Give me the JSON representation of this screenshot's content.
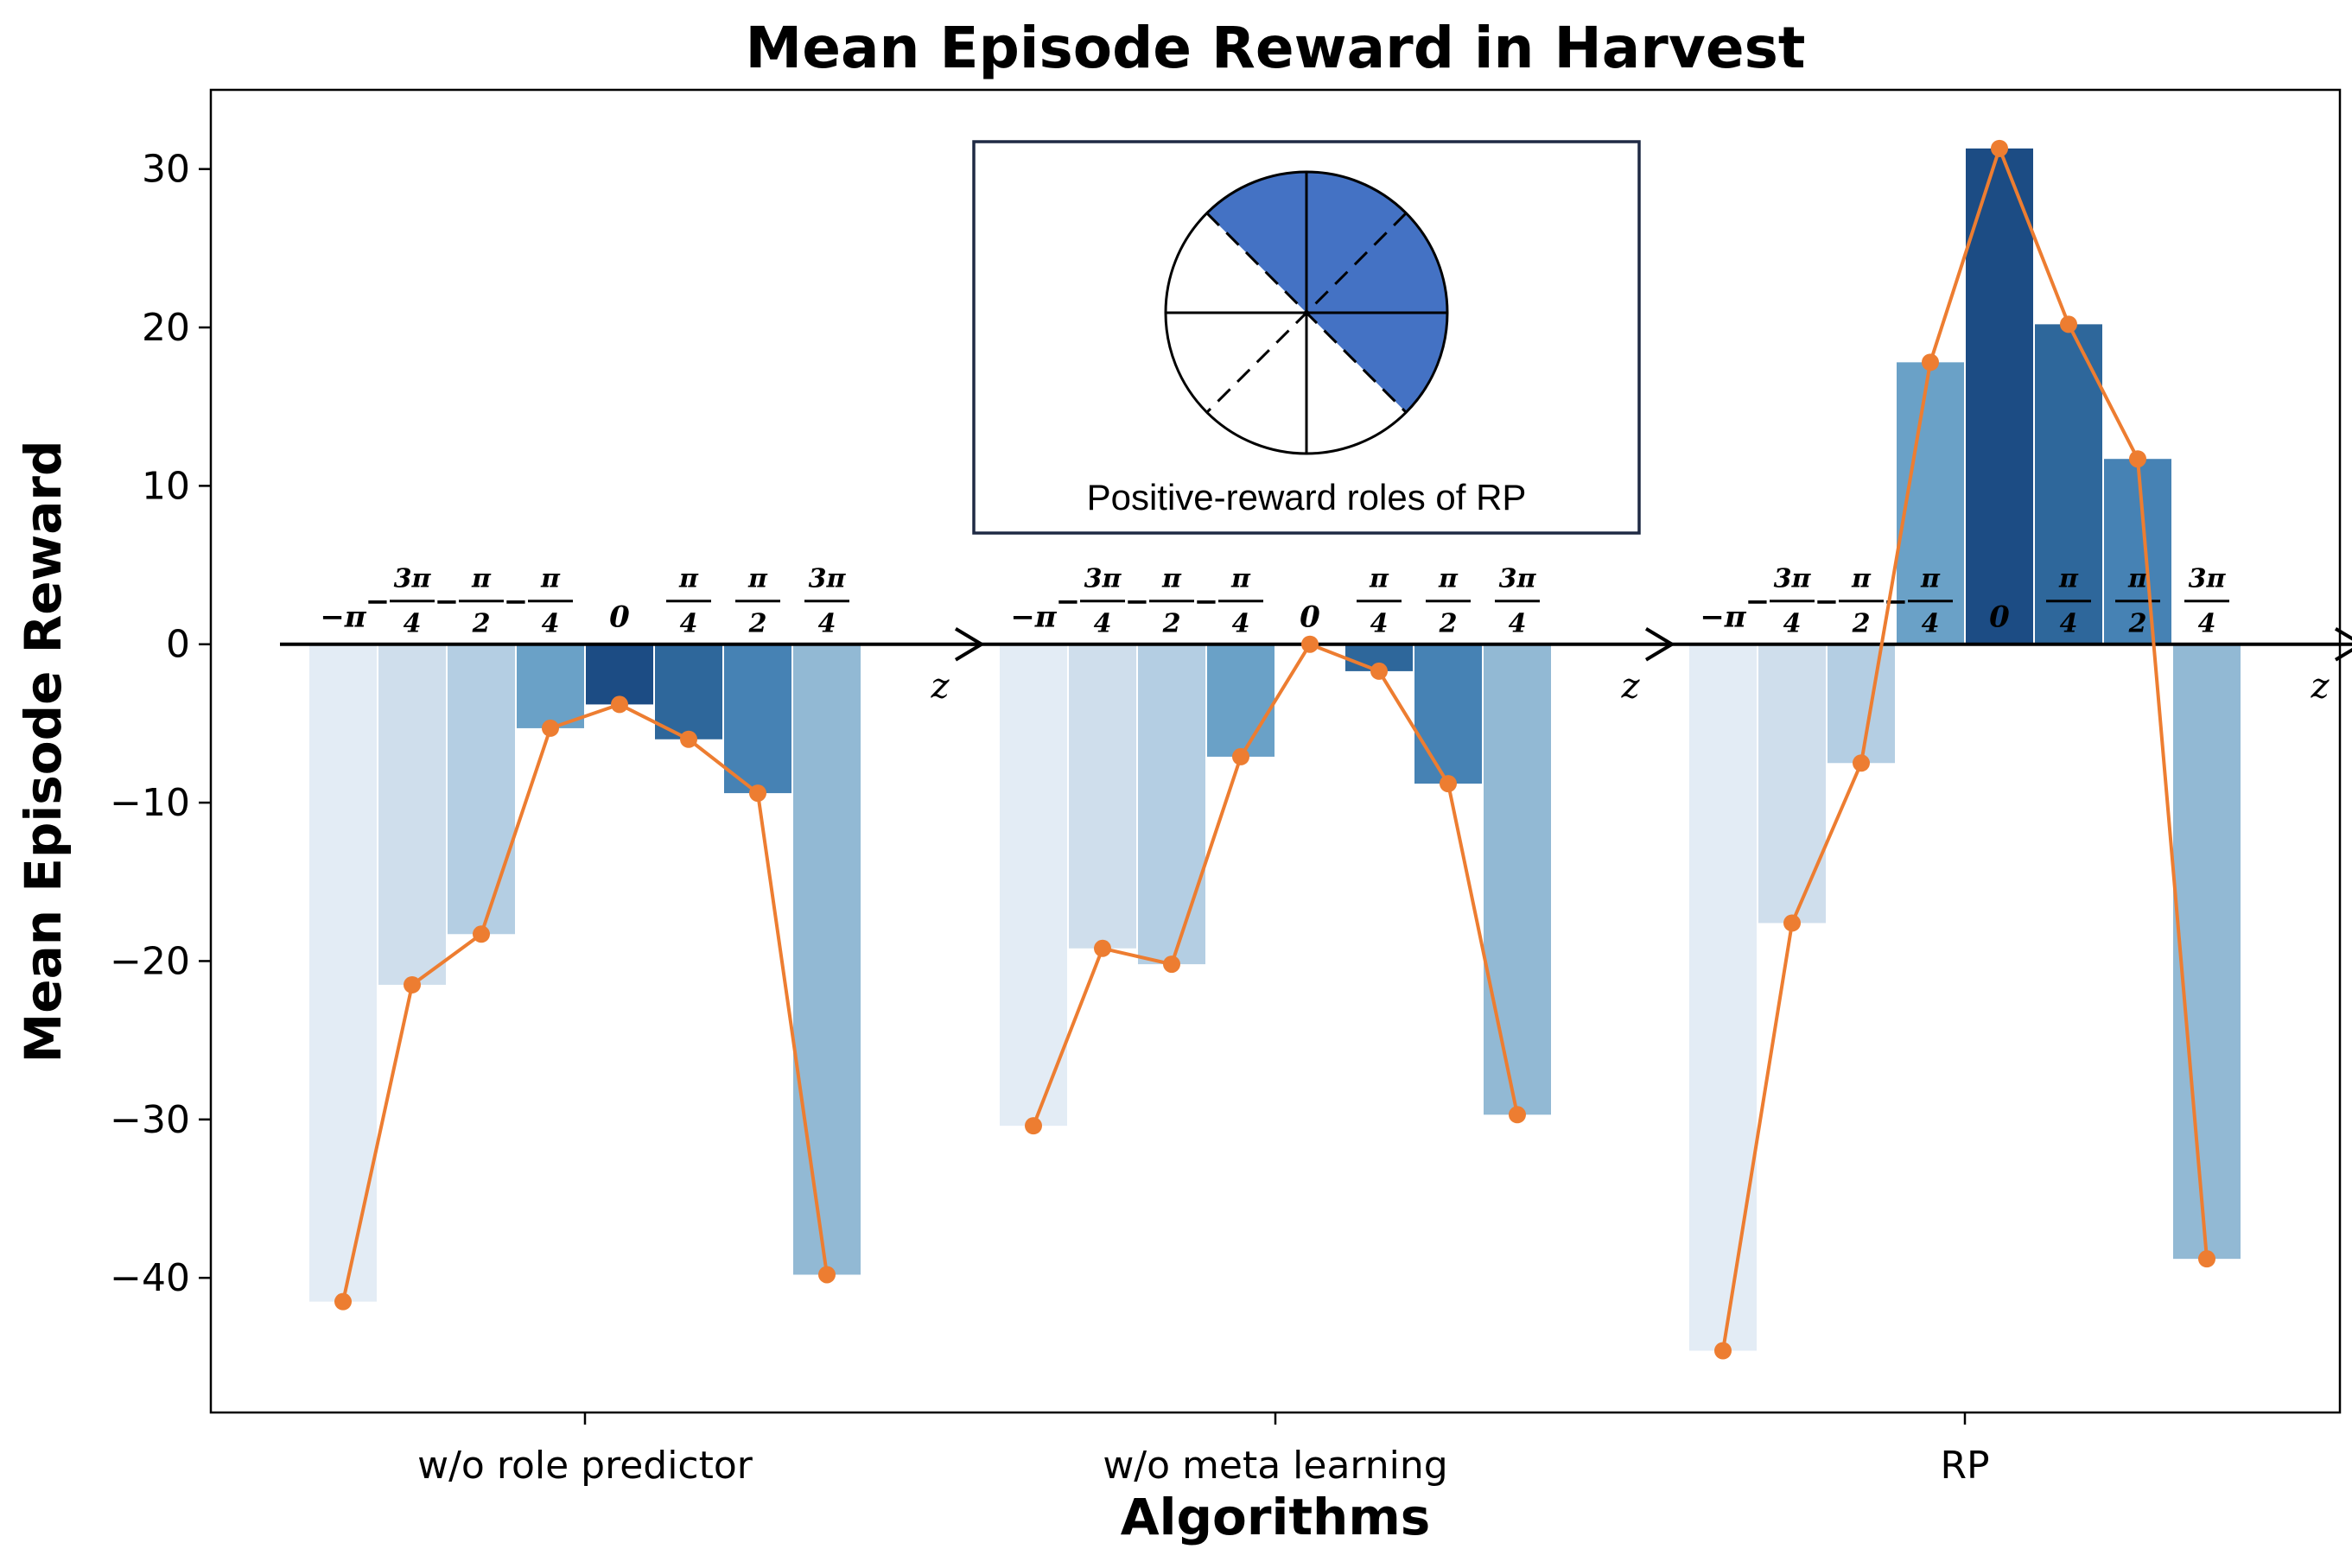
{
  "chart_data": {
    "type": "bar",
    "title": "Mean Episode Reward in Harvest",
    "xlabel": "Algorithms",
    "ylabel": "Mean Episode Reward",
    "ylim": [
      -48.5,
      35
    ],
    "yticks": [
      30,
      20,
      10,
      0,
      -10,
      -20,
      -30,
      -40
    ],
    "ytick_labels": [
      "30",
      "20",
      "10",
      "0",
      "−10",
      "−20",
      "−30",
      "−40"
    ],
    "role_axis_label": "z",
    "role_angles": [
      {
        "sign": "−",
        "num": "π",
        "den": ""
      },
      {
        "sign": "−",
        "num": "3π",
        "den": "4"
      },
      {
        "sign": "−",
        "num": "π",
        "den": "2"
      },
      {
        "sign": "−",
        "num": "π",
        "den": "4"
      },
      {
        "sign": "",
        "num": "0",
        "den": ""
      },
      {
        "sign": "",
        "num": "π",
        "den": "4"
      },
      {
        "sign": "",
        "num": "π",
        "den": "2"
      },
      {
        "sign": "",
        "num": "3π",
        "den": "4"
      }
    ],
    "bar_colors": [
      "#e3ecf5",
      "#cfdeec",
      "#b4cee3",
      "#6aa1c7",
      "#1c4c84",
      "#2e679b",
      "#4682b4",
      "#92b9d4"
    ],
    "line_color": "#ed7d31",
    "groups": [
      {
        "name": "w/o role predictor",
        "values": [
          -41.5,
          -21.5,
          -18.3,
          -5.3,
          -3.8,
          -6.0,
          -9.4,
          -39.8
        ]
      },
      {
        "name": "w/o meta learning",
        "values": [
          -30.4,
          -19.2,
          -20.2,
          -7.1,
          0.0,
          -1.7,
          -8.8,
          -29.7
        ]
      },
      {
        "name": "RP",
        "values": [
          -44.6,
          -17.6,
          -7.5,
          17.8,
          31.3,
          20.2,
          11.7,
          -38.8
        ]
      }
    ],
    "inset": {
      "caption": "Positive-reward roles of RP",
      "fill_color": "#4472c4"
    }
  }
}
